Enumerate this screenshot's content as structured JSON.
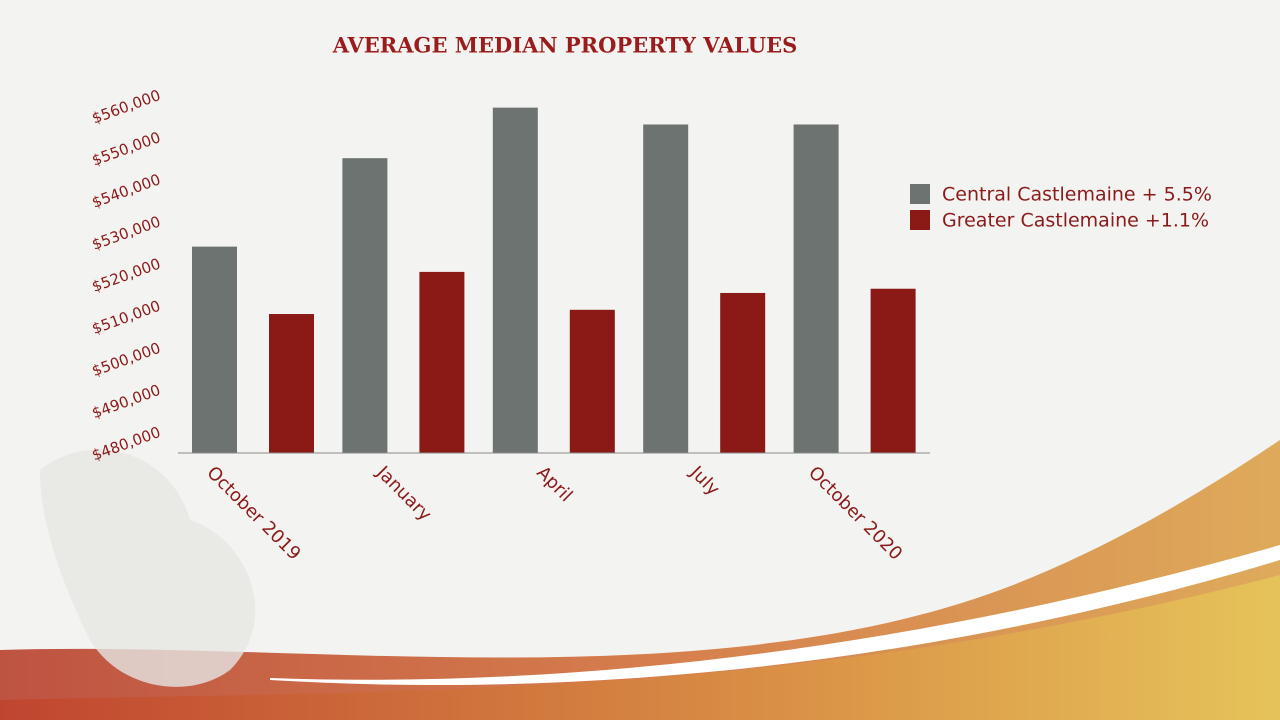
{
  "chart_data": {
    "type": "bar",
    "title": "AVERAGE MEDIAN PROPERTY VALUES",
    "categories": [
      "October 2019",
      "January",
      "April",
      "July",
      "October 2020"
    ],
    "series": [
      {
        "name": "Central Castlemaine + 5.5%",
        "color": "#6d7370",
        "values": [
          524000,
          545000,
          557000,
          553000,
          553000
        ]
      },
      {
        "name": "Greater Castlemaine +1.1%",
        "color": "#8b1a16",
        "values": [
          508000,
          518000,
          509000,
          513000,
          514000
        ]
      }
    ],
    "ylim": [
      475000,
      560000
    ],
    "yticks": [
      {
        "value": 480000,
        "label": "$480,000"
      },
      {
        "value": 490000,
        "label": "$490,000"
      },
      {
        "value": 500000,
        "label": "$500,000"
      },
      {
        "value": 510000,
        "label": "$510,000"
      },
      {
        "value": 520000,
        "label": "$520,000"
      },
      {
        "value": 530000,
        "label": "$530,000"
      },
      {
        "value": 540000,
        "label": "$540,000"
      },
      {
        "value": 550000,
        "label": "$550,000"
      },
      {
        "value": 560000,
        "label": "$560,000"
      }
    ],
    "grid": false,
    "legend": "right"
  }
}
